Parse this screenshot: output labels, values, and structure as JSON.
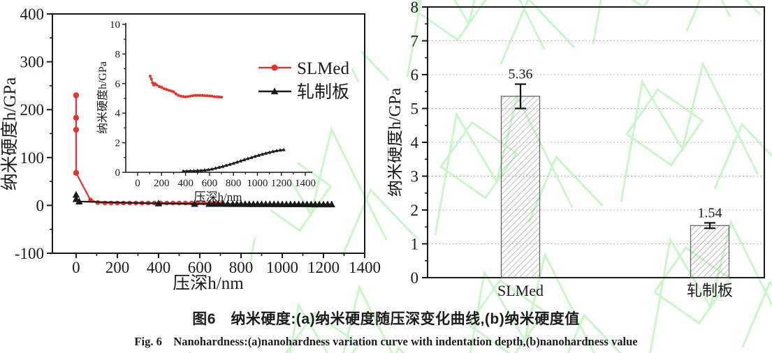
{
  "colors": {
    "slmed_red": "#e5342a",
    "series_black": "#1a1a1a",
    "grid_gray": "#b8b8b8",
    "watermark_green": "#c9f6c9",
    "frame_black": "#1a1a1a"
  },
  "chart_data": [
    {
      "type": "line",
      "panel": "a",
      "xlabel": "压深h/nm",
      "ylabel": "纳米硬度h/GPa",
      "xlim": [
        -115,
        1400
      ],
      "ylim": [
        -100,
        400
      ],
      "xticks": [
        0,
        200,
        400,
        600,
        800,
        1000,
        1200,
        1400
      ],
      "yticks": [
        -100,
        0,
        100,
        200,
        300,
        400
      ],
      "legend": [
        "SLMed",
        "轧制板"
      ],
      "series": [
        {
          "name": "SLMed",
          "color": "#e5342a",
          "marker": "circle",
          "points": [
            [
              0,
              230
            ],
            [
              0,
              183
            ],
            [
              0,
              158
            ],
            [
              0,
              68
            ],
            [
              70,
              11
            ],
            [
              105,
              6
            ],
            [
              140,
              5
            ],
            [
              170,
              5
            ],
            [
              200,
              5
            ],
            [
              230,
              5
            ],
            [
              260,
              5
            ],
            [
              290,
              5
            ],
            [
              320,
              5
            ],
            [
              350,
              5
            ],
            [
              380,
              5
            ],
            [
              410,
              5
            ],
            [
              440,
              5
            ],
            [
              470,
              5
            ],
            [
              500,
              5
            ],
            [
              530,
              5
            ],
            [
              560,
              5
            ],
            [
              590,
              5
            ],
            [
              620,
              5
            ],
            [
              650,
              5
            ],
            [
              680,
              5
            ],
            [
              710,
              5
            ]
          ]
        },
        {
          "name": "轧制板",
          "color": "#1a1a1a",
          "marker": "triangle",
          "points": [
            [
              0,
              22
            ],
            [
              0,
              13
            ],
            [
              15,
              8
            ],
            [
              400,
              4
            ],
            [
              575,
              3
            ],
            [
              645,
              3
            ],
            [
              668,
              3
            ],
            [
              690,
              3
            ],
            [
              712,
              3
            ],
            [
              735,
              2.8
            ],
            [
              760,
              2.8
            ],
            [
              780,
              2.7
            ],
            [
              800,
              2.7
            ],
            [
              820,
              2.7
            ],
            [
              840,
              2.6
            ],
            [
              860,
              2.6
            ],
            [
              880,
              2.6
            ],
            [
              900,
              2.5
            ],
            [
              920,
              2.5
            ],
            [
              940,
              2.5
            ],
            [
              960,
              2.4
            ],
            [
              980,
              2.4
            ],
            [
              1000,
              2.4
            ],
            [
              1020,
              2.3
            ],
            [
              1040,
              2.3
            ],
            [
              1060,
              2.3
            ],
            [
              1080,
              2.2
            ],
            [
              1100,
              2.2
            ],
            [
              1120,
              2.2
            ],
            [
              1140,
              2.1
            ],
            [
              1160,
              2.1
            ],
            [
              1180,
              2.1
            ],
            [
              1200,
              2
            ],
            [
              1220,
              2
            ],
            [
              1240,
              2
            ]
          ]
        }
      ],
      "inset": {
        "type": "line",
        "xlabel": "压深h/nm",
        "ylabel": "纳米硬度h/GPa",
        "xlim": [
          0,
          1400
        ],
        "ylim": [
          0,
          10
        ],
        "xticks": [
          0,
          200,
          400,
          600,
          800,
          1000,
          1200,
          1400
        ],
        "yticks": [
          0,
          2,
          4,
          6,
          8,
          10
        ],
        "series": [
          {
            "name": "SLMed",
            "color": "#e5342a",
            "marker": "circle",
            "points": [
              [
                105,
                6.5
              ],
              [
                115,
                6.3
              ],
              [
                125,
                6.05
              ],
              [
                135,
                5.9
              ],
              [
                145,
                6.0
              ],
              [
                160,
                5.9
              ],
              [
                180,
                5.8
              ],
              [
                200,
                5.75
              ],
              [
                220,
                5.65
              ],
              [
                240,
                5.6
              ],
              [
                260,
                5.55
              ],
              [
                280,
                5.5
              ],
              [
                300,
                5.45
              ],
              [
                320,
                5.3
              ],
              [
                340,
                5.2
              ],
              [
                360,
                5.15
              ],
              [
                380,
                5.12
              ],
              [
                400,
                5.1
              ],
              [
                420,
                5.12
              ],
              [
                440,
                5.15
              ],
              [
                460,
                5.18
              ],
              [
                480,
                5.2
              ],
              [
                500,
                5.2
              ],
              [
                520,
                5.2
              ],
              [
                540,
                5.2
              ],
              [
                560,
                5.18
              ],
              [
                580,
                5.18
              ],
              [
                600,
                5.16
              ],
              [
                620,
                5.15
              ],
              [
                640,
                5.12
              ],
              [
                660,
                5.1
              ],
              [
                680,
                5.1
              ],
              [
                700,
                5.08
              ]
            ]
          },
          {
            "name": "轧制板",
            "color": "#1a1a1a",
            "marker": "triangle",
            "points": [
              [
                380,
                0.08
              ],
              [
                410,
                0.08
              ],
              [
                440,
                0.1
              ],
              [
                470,
                0.1
              ],
              [
                500,
                0.12
              ],
              [
                530,
                0.13
              ],
              [
                560,
                0.15
              ],
              [
                590,
                0.18
              ],
              [
                620,
                0.22
              ],
              [
                650,
                0.28
              ],
              [
                680,
                0.34
              ],
              [
                710,
                0.4
              ],
              [
                740,
                0.47
              ],
              [
                770,
                0.54
              ],
              [
                800,
                0.61
              ],
              [
                830,
                0.69
              ],
              [
                860,
                0.77
              ],
              [
                890,
                0.85
              ],
              [
                920,
                0.93
              ],
              [
                950,
                1.0
              ],
              [
                980,
                1.08
              ],
              [
                1010,
                1.15
              ],
              [
                1040,
                1.22
              ],
              [
                1070,
                1.29
              ],
              [
                1100,
                1.35
              ],
              [
                1130,
                1.41
              ],
              [
                1160,
                1.46
              ],
              [
                1190,
                1.5
              ],
              [
                1220,
                1.53
              ]
            ]
          }
        ]
      }
    },
    {
      "type": "bar",
      "panel": "b",
      "ylabel": "纳米硬度h/GPa",
      "ylim": [
        0,
        8
      ],
      "yticks": [
        0,
        1,
        2,
        3,
        4,
        5,
        6,
        7,
        8
      ],
      "grid": "horizontal-dotted",
      "categories": [
        "SLMed",
        "轧制板"
      ],
      "values": [
        5.36,
        1.54
      ],
      "errors": [
        0.36,
        0.08
      ],
      "value_labels": [
        "5.36",
        "1.54"
      ],
      "bar_style": "diagonal-hatch"
    }
  ],
  "caption": {
    "zh": "图6　纳米硬度:(a)纳米硬度随压深变化曲线,(b)纳米硬度值",
    "en": "Fig. 6　Nanohardness:(a)nanohardness variation curve with indentation depth,(b)nanohardness value"
  }
}
